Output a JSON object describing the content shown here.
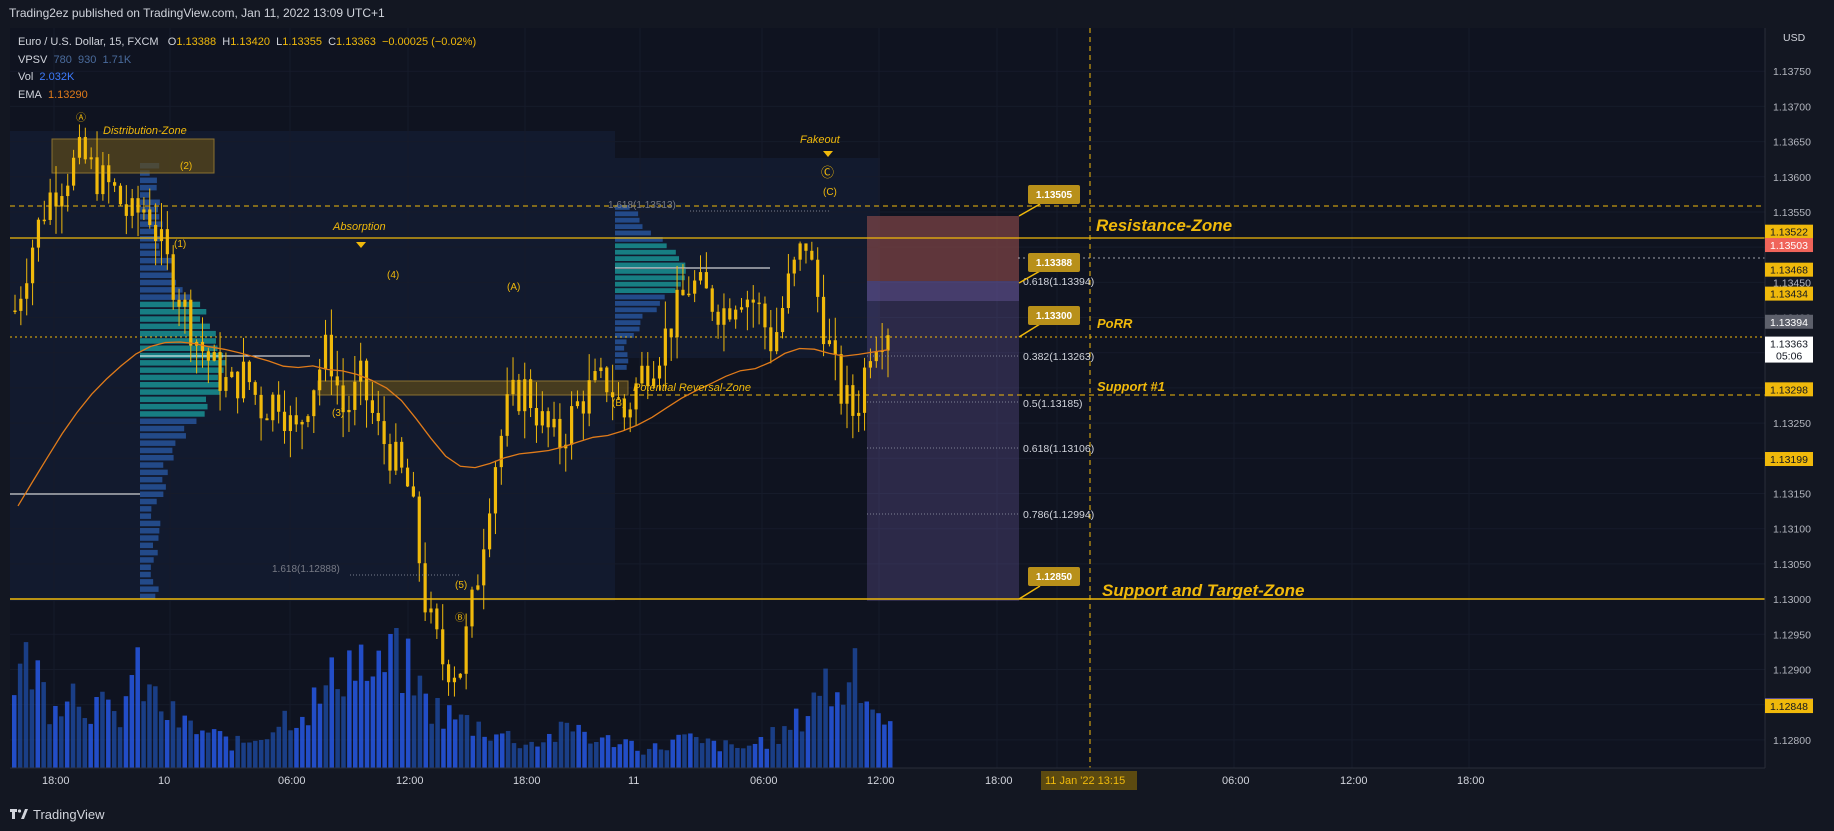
{
  "header": {
    "publish_line": "Trading2ez published on TradingView.com, Jan 11, 2022 13:09 UTC+1"
  },
  "legend": {
    "symbol": "Euro / U.S. Dollar, 15, FXCM",
    "ohlc": {
      "o_label": "O",
      "o": "1.13388",
      "h_label": "H",
      "h": "1.13420",
      "l_label": "L",
      "l": "1.13355",
      "c_label": "C",
      "c": "1.13363",
      "chg": "−0.00025 (−0.02%)"
    },
    "vpsv": {
      "label": "VPSV",
      "v1": "780",
      "v2": "930",
      "v3": "1.71K"
    },
    "vol": {
      "label": "Vol",
      "value": "2.032K"
    },
    "ema": {
      "label": "EMA",
      "value": "1.13290"
    }
  },
  "footer": {
    "brand": "TradingView"
  },
  "colors": {
    "background": "#0f1320",
    "accent": "#f0b90b",
    "candle": "#f0b90b",
    "volume": "#2962ff",
    "volume_dim": "#1e3a70",
    "zone_fill": "#5c4a1a",
    "target_box": "#6b5aa0",
    "stop_box": "#8a4a4a",
    "ema": "#e07b1a"
  },
  "chart_data": {
    "type": "candlestick",
    "symbol": "EURUSD",
    "timeframe": "15",
    "currency_label": "USD",
    "ylim": [
      1.1276,
      1.138
    ],
    "y_ticks": [
      "1.13750",
      "1.13700",
      "1.13650",
      "1.13600",
      "1.13550",
      "1.13500",
      "1.13450",
      "1.13400",
      "1.13350",
      "1.13300",
      "1.13250",
      "1.13200",
      "1.13150",
      "1.13100",
      "1.13050",
      "1.13000",
      "1.12950",
      "1.12900",
      "1.12850",
      "1.12800"
    ],
    "x_ticks": [
      "18:00",
      "10",
      "06:00",
      "12:00",
      "18:00",
      "11",
      "06:00",
      "12:00",
      "18:00",
      "11 Jan '22  13:15",
      "06:00",
      "12:00",
      "18:00"
    ],
    "price_labels": [
      {
        "value": "1.13522",
        "style": "accent"
      },
      {
        "value": "1.13503",
        "style": "red"
      },
      {
        "value": "1.13468",
        "style": "accent"
      },
      {
        "value": "1.13434",
        "style": "accent"
      },
      {
        "value": "1.13394",
        "style": "grey"
      },
      {
        "value": "1.13363",
        "style": "current",
        "sub": "05:06"
      },
      {
        "value": "1.13298",
        "style": "accent"
      },
      {
        "value": "1.13199",
        "style": "accent"
      },
      {
        "value": "1.12849",
        "style": "purple"
      },
      {
        "value": "1.12848",
        "style": "accent"
      }
    ],
    "zones": [
      {
        "label": "Resistance-Zone",
        "price": 1.13468
      },
      {
        "label": "PoRR",
        "price": 1.13298
      },
      {
        "label": "Support #1",
        "price": 1.13199
      },
      {
        "label": "Support and Target-Zone",
        "price": 1.12849
      }
    ],
    "callouts": [
      "1.13505",
      "1.13388",
      "1.13300",
      "1.12850"
    ],
    "fib_labels": [
      "0.618(1.13394)",
      "0.382(1.13263)",
      "0.5(1.13185)",
      "0.618(1.13106)",
      "0.786(1.12994)",
      "1.618(1.13513)",
      "1.618(1.12888)"
    ],
    "annotations": [
      "Distribution-Zone",
      "Absorption",
      "Fakeout",
      "Potential Reversal-Zone"
    ],
    "wave_labels": [
      "Ⓐ",
      "(2)",
      "(1)",
      "(4)",
      "(3)",
      "(5)",
      "Ⓑ",
      "(A)",
      "(B)",
      "(C)",
      "Ⓒ"
    ],
    "ema_last": 1.1329,
    "price_path": [
      1.1341,
      1.135,
      1.1357,
      1.136,
      1.1363,
      1.136,
      1.1358,
      1.1354,
      1.1356,
      1.1349,
      1.1343,
      1.1337,
      1.1333,
      1.133,
      1.1332,
      1.1327,
      1.1329,
      1.1323,
      1.133,
      1.1336,
      1.1326,
      1.1331,
      1.1324,
      1.132,
      1.1315,
      1.1298,
      1.1291,
      1.129,
      1.1302,
      1.1318,
      1.1328,
      1.133,
      1.1325,
      1.1322,
      1.1327,
      1.133,
      1.1331,
      1.1326,
      1.1332,
      1.1335,
      1.134,
      1.1345,
      1.1343,
      1.1341,
      1.1344,
      1.1342,
      1.1336,
      1.1345,
      1.1351,
      1.134,
      1.133,
      1.1326,
      1.1337,
      1.1339
    ],
    "volume_path": [
      0.75,
      0.9,
      0.55,
      0.7,
      0.6,
      0.5,
      0.4,
      0.8,
      0.6,
      0.45,
      0.35,
      0.3,
      0.25,
      0.2,
      0.25,
      0.35,
      0.45,
      0.5,
      0.6,
      0.85,
      0.95,
      0.7,
      1.0,
      0.8,
      0.55,
      0.45,
      0.4,
      0.35,
      0.3,
      0.25,
      0.2,
      0.25,
      0.3,
      0.35,
      0.2,
      0.25,
      0.2,
      0.15,
      0.2,
      0.25,
      0.2,
      0.2,
      0.15,
      0.2,
      0.25,
      0.3,
      0.45,
      0.75,
      0.55,
      0.95,
      0.5,
      0.4
    ]
  }
}
